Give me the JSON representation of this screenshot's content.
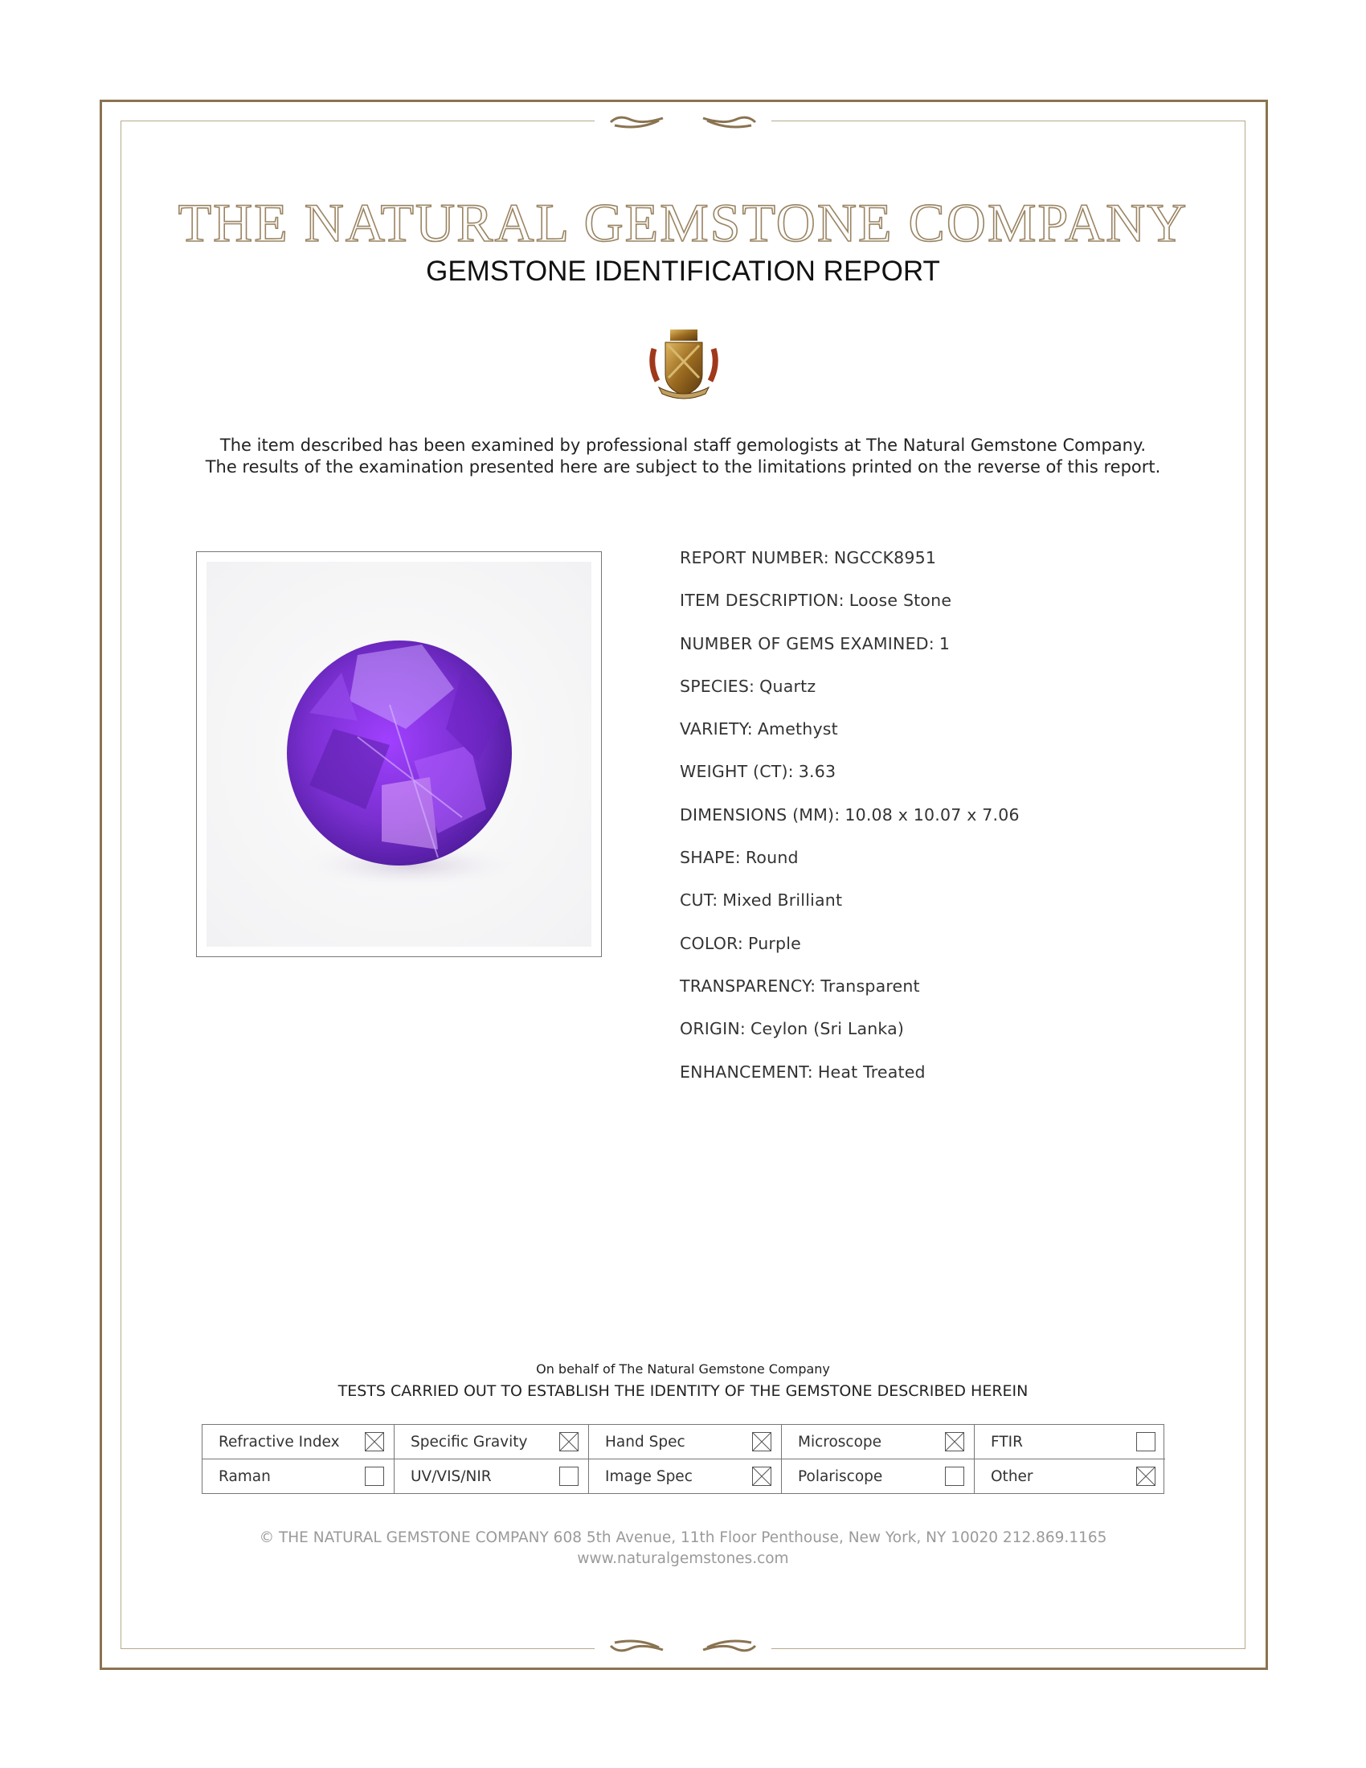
{
  "header": {
    "company": "THE NATURAL GEMSTONE COMPANY",
    "report_title": "GEMSTONE IDENTIFICATION REPORT"
  },
  "intro": {
    "line1": "The item described has been examined by professional staff gemologists at The Natural Gemstone Company.",
    "line2": "The results of the examination presented here are subject to the limitations printed on the reverse of this report."
  },
  "details": [
    {
      "label": "REPORT NUMBER:",
      "value": "NGCCK8951"
    },
    {
      "label": "ITEM DESCRIPTION:",
      "value": "Loose Stone"
    },
    {
      "label": "NUMBER OF GEMS EXAMINED:",
      "value": "1"
    },
    {
      "label": "SPECIES:",
      "value": "Quartz"
    },
    {
      "label": "VARIETY:",
      "value": "Amethyst"
    },
    {
      "label": "WEIGHT (CT):",
      "value": "3.63"
    },
    {
      "label": "DIMENSIONS (MM):",
      "value": "10.08 x 10.07 x 7.06"
    },
    {
      "label": "SHAPE:",
      "value": "Round"
    },
    {
      "label": "CUT:",
      "value": "Mixed Brilliant"
    },
    {
      "label": "COLOR:",
      "value": "Purple"
    },
    {
      "label": "TRANSPARENCY:",
      "value": "Transparent"
    },
    {
      "label": "ORIGIN:",
      "value": "Ceylon (Sri Lanka)"
    },
    {
      "label": "ENHANCEMENT:",
      "value": "Heat Treated"
    }
  ],
  "tests": {
    "on_behalf": "On behalf of The Natural Gemstone Company",
    "heading": "TESTS CARRIED OUT TO ESTABLISH THE IDENTITY OF THE GEMSTONE DESCRIBED HEREIN",
    "items": [
      {
        "label": "Refractive Index",
        "checked": true
      },
      {
        "label": "Specific Gravity",
        "checked": true
      },
      {
        "label": "Hand Spec",
        "checked": true
      },
      {
        "label": "Microscope",
        "checked": true
      },
      {
        "label": "FTIR",
        "checked": false
      },
      {
        "label": "Raman",
        "checked": false
      },
      {
        "label": "UV/VIS/NIR",
        "checked": false
      },
      {
        "label": "Image Spec",
        "checked": true
      },
      {
        "label": "Polariscope",
        "checked": false
      },
      {
        "label": "Other",
        "checked": true
      }
    ]
  },
  "footer": {
    "address": "© THE NATURAL GEMSTONE COMPANY  608 5th Avenue, 11th Floor Penthouse, New York, NY  10020   212.869.1165",
    "website": "www.naturalgemstones.com"
  },
  "colors": {
    "border": "#8a7350",
    "gem": "#7a2fd0"
  },
  "icons": {
    "crest": "crest-logo",
    "ornament": "scroll-ornament"
  }
}
